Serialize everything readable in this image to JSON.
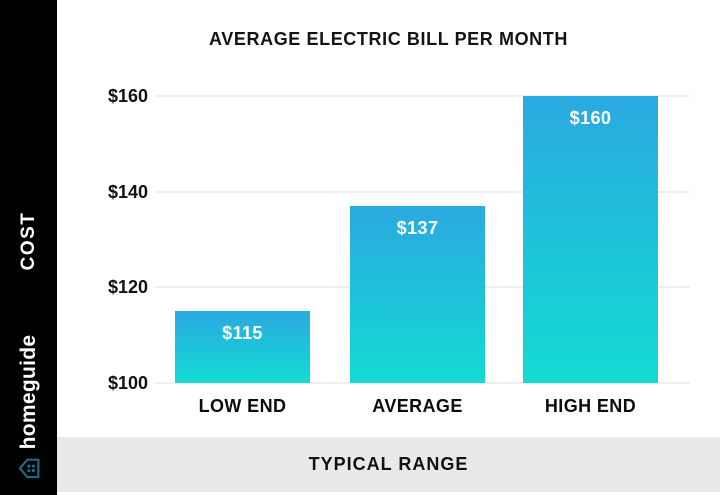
{
  "sidebar": {
    "cost_label": "COST",
    "brand_name": "homeguide",
    "bg_color": "#000000",
    "logo_color": "#1b6a8c"
  },
  "header": {
    "title": "AVERAGE ELECTRIC BILL PER MONTH"
  },
  "footer": {
    "label": "TYPICAL RANGE",
    "bg_color": "#e9e9e9"
  },
  "chart_data": {
    "type": "bar",
    "title": "AVERAGE ELECTRIC BILL PER MONTH",
    "categories": [
      "LOW END",
      "AVERAGE",
      "HIGH END"
    ],
    "values": [
      115,
      137,
      160
    ],
    "bar_labels": [
      "$115",
      "$137",
      "$160"
    ],
    "y_ticks": [
      "$160",
      "$140",
      "$120",
      "$100"
    ],
    "y_tick_values": [
      160,
      140,
      120,
      100
    ],
    "ylim": [
      100,
      160
    ],
    "xlabel": "TYPICAL RANGE",
    "ylabel": "COST",
    "grid": true,
    "legend": false,
    "bar_gradient_top": "#2ba9e1",
    "bar_gradient_bottom": "#13dbd2",
    "gridline_color": "#efefef"
  }
}
